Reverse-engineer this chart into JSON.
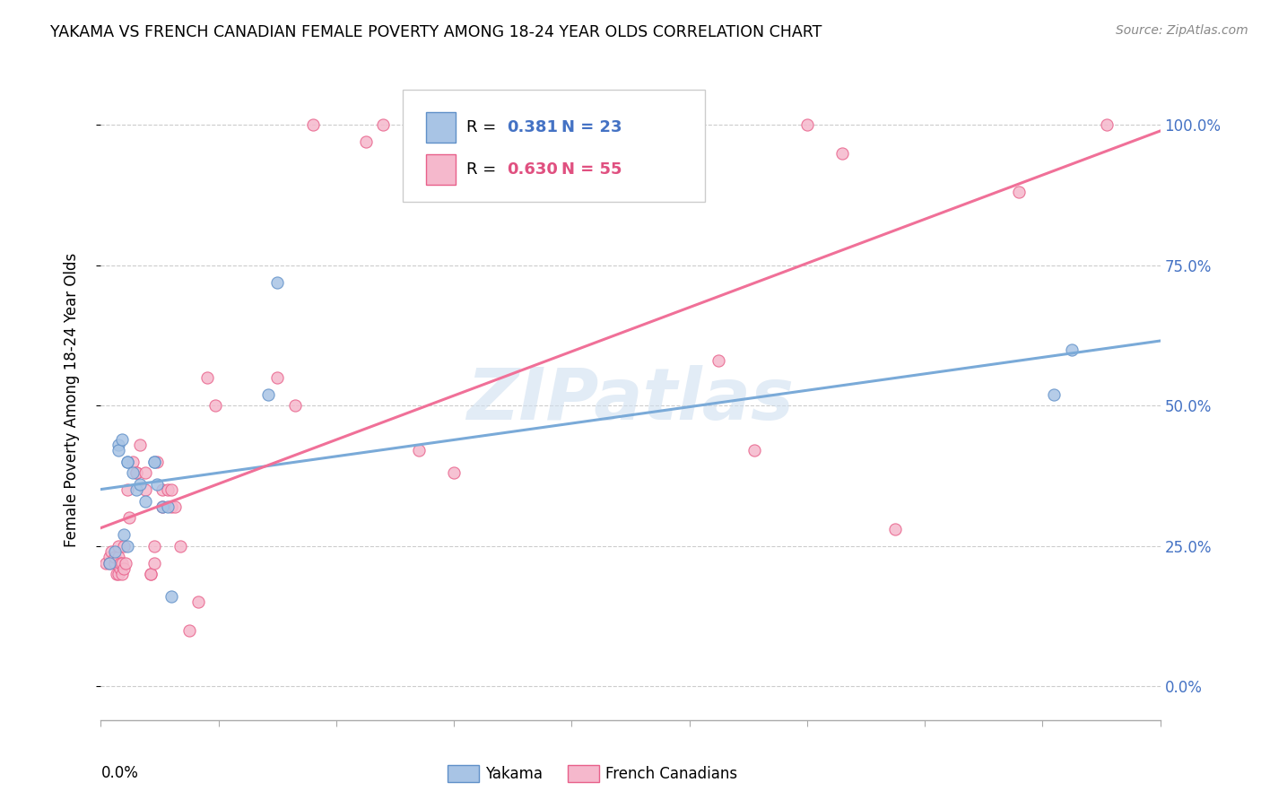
{
  "title": "YAKAMA VS FRENCH CANADIAN FEMALE POVERTY AMONG 18-24 YEAR OLDS CORRELATION CHART",
  "source": "Source: ZipAtlas.com",
  "ylabel": "Female Poverty Among 18-24 Year Olds",
  "xlim": [
    0.0,
    0.6
  ],
  "ylim": [
    -0.06,
    1.08
  ],
  "ytick_values": [
    0.0,
    0.25,
    0.5,
    0.75,
    1.0
  ],
  "ytick_labels": [
    "0.0%",
    "25.0%",
    "50.0%",
    "75.0%",
    "100.0%"
  ],
  "watermark": "ZIPatlas",
  "yakama_color": "#a8c4e5",
  "yakama_edge_color": "#6090c8",
  "french_color": "#f5b8cc",
  "french_edge_color": "#e8608a",
  "yakama_line_color": "#7aaad8",
  "french_line_color": "#f07098",
  "stat_color_blue": "#4472c4",
  "stat_color_pink": "#e05080",
  "r_yakama": "0.381",
  "n_yakama": "23",
  "r_french": "0.630",
  "n_french": "55",
  "yakama_x": [
    0.005,
    0.008,
    0.01,
    0.01,
    0.012,
    0.013,
    0.015,
    0.015,
    0.015,
    0.018,
    0.02,
    0.022,
    0.025,
    0.03,
    0.03,
    0.032,
    0.035,
    0.038,
    0.04,
    0.095,
    0.1,
    0.54,
    0.55
  ],
  "yakama_y": [
    0.22,
    0.24,
    0.43,
    0.42,
    0.44,
    0.27,
    0.4,
    0.4,
    0.25,
    0.38,
    0.35,
    0.36,
    0.33,
    0.4,
    0.4,
    0.36,
    0.32,
    0.32,
    0.16,
    0.52,
    0.72,
    0.52,
    0.6
  ],
  "french_x": [
    0.003,
    0.005,
    0.005,
    0.006,
    0.008,
    0.008,
    0.009,
    0.01,
    0.01,
    0.01,
    0.011,
    0.011,
    0.012,
    0.012,
    0.013,
    0.013,
    0.014,
    0.015,
    0.016,
    0.018,
    0.02,
    0.02,
    0.022,
    0.025,
    0.025,
    0.028,
    0.028,
    0.03,
    0.03,
    0.032,
    0.035,
    0.035,
    0.038,
    0.04,
    0.04,
    0.042,
    0.045,
    0.05,
    0.055,
    0.06,
    0.065,
    0.1,
    0.11,
    0.12,
    0.15,
    0.16,
    0.18,
    0.2,
    0.35,
    0.37,
    0.4,
    0.42,
    0.45,
    0.52,
    0.57
  ],
  "french_y": [
    0.22,
    0.23,
    0.22,
    0.24,
    0.22,
    0.23,
    0.2,
    0.23,
    0.25,
    0.2,
    0.21,
    0.22,
    0.2,
    0.22,
    0.25,
    0.21,
    0.22,
    0.35,
    0.3,
    0.4,
    0.38,
    0.38,
    0.43,
    0.35,
    0.38,
    0.2,
    0.2,
    0.25,
    0.22,
    0.4,
    0.32,
    0.35,
    0.35,
    0.35,
    0.32,
    0.32,
    0.25,
    0.1,
    0.15,
    0.55,
    0.5,
    0.55,
    0.5,
    1.0,
    0.97,
    1.0,
    0.42,
    0.38,
    0.58,
    0.42,
    1.0,
    0.95,
    0.28,
    0.88,
    1.0
  ]
}
